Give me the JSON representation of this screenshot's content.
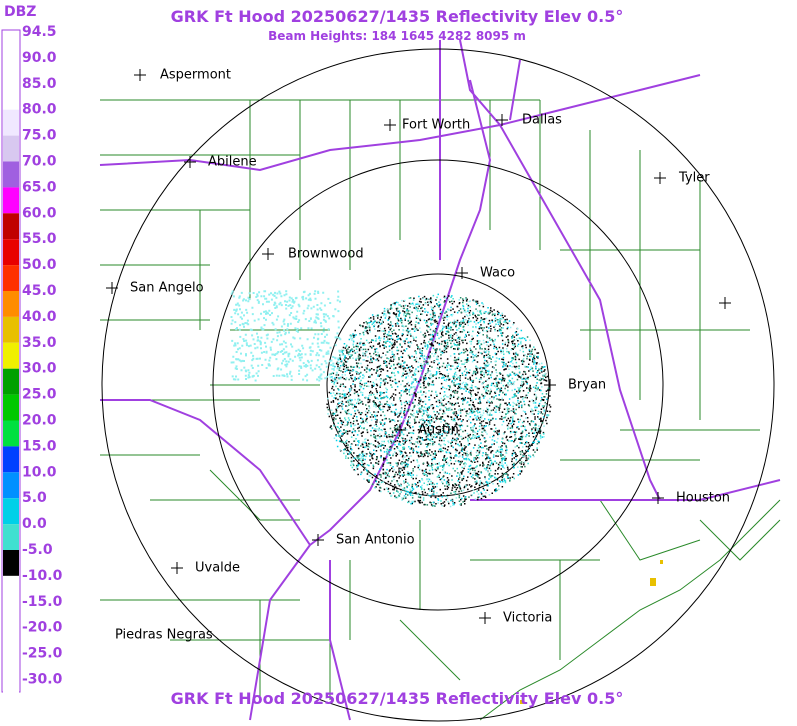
{
  "header": {
    "title": "GRK Ft Hood 20250627/1435 Reflectivity Elev 0.5°",
    "subtitle": "Beam Heights: 184 1645 4282 8095 m"
  },
  "footer": {
    "title": "GRK Ft Hood 20250627/1435 Reflectivity Elev 0.5°"
  },
  "color_scale": {
    "unit": "DBZ",
    "levels": [
      {
        "label": "94.5",
        "color": "#ffffff"
      },
      {
        "label": "90.0",
        "color": "#ffffff"
      },
      {
        "label": "85.0",
        "color": "#ffffff"
      },
      {
        "label": "80.0",
        "color": "#f0e8ff"
      },
      {
        "label": "75.0",
        "color": "#d8c8f0"
      },
      {
        "label": "70.0",
        "color": "#a060e0"
      },
      {
        "label": "65.0",
        "color": "#ff00ff"
      },
      {
        "label": "60.0",
        "color": "#c00000"
      },
      {
        "label": "55.0",
        "color": "#e80000"
      },
      {
        "label": "50.0",
        "color": "#ff3000"
      },
      {
        "label": "45.0",
        "color": "#ff8c00"
      },
      {
        "label": "40.0",
        "color": "#e8c000"
      },
      {
        "label": "35.0",
        "color": "#f0f000"
      },
      {
        "label": "30.0",
        "color": "#00a000"
      },
      {
        "label": "25.0",
        "color": "#00c800"
      },
      {
        "label": "20.0",
        "color": "#00e040"
      },
      {
        "label": "15.0",
        "color": "#0040ff"
      },
      {
        "label": "10.0",
        "color": "#0090ff"
      },
      {
        "label": "5.0",
        "color": "#00d0e8"
      },
      {
        "label": "0.0",
        "color": "#40e0d0"
      },
      {
        "label": "-5.0",
        "color": "#000000"
      },
      {
        "label": "-10.0",
        "color": "#ffffff"
      },
      {
        "label": "-15.0",
        "color": "#ffffff"
      },
      {
        "label": "-20.0",
        "color": "#ffffff"
      },
      {
        "label": "-25.0",
        "color": "#ffffff"
      },
      {
        "label": "-30.0",
        "color": "#ffffff"
      }
    ]
  },
  "cities": [
    "Aspermont",
    "Fort Worth",
    "Dallas",
    "Abilene",
    "Tyler",
    "Brownwood",
    "Waco",
    "San Angelo",
    "Bryan",
    "Austin",
    "Houston",
    "San Antonio",
    "Uvalde",
    "Piedras Negras",
    "Victoria"
  ]
}
